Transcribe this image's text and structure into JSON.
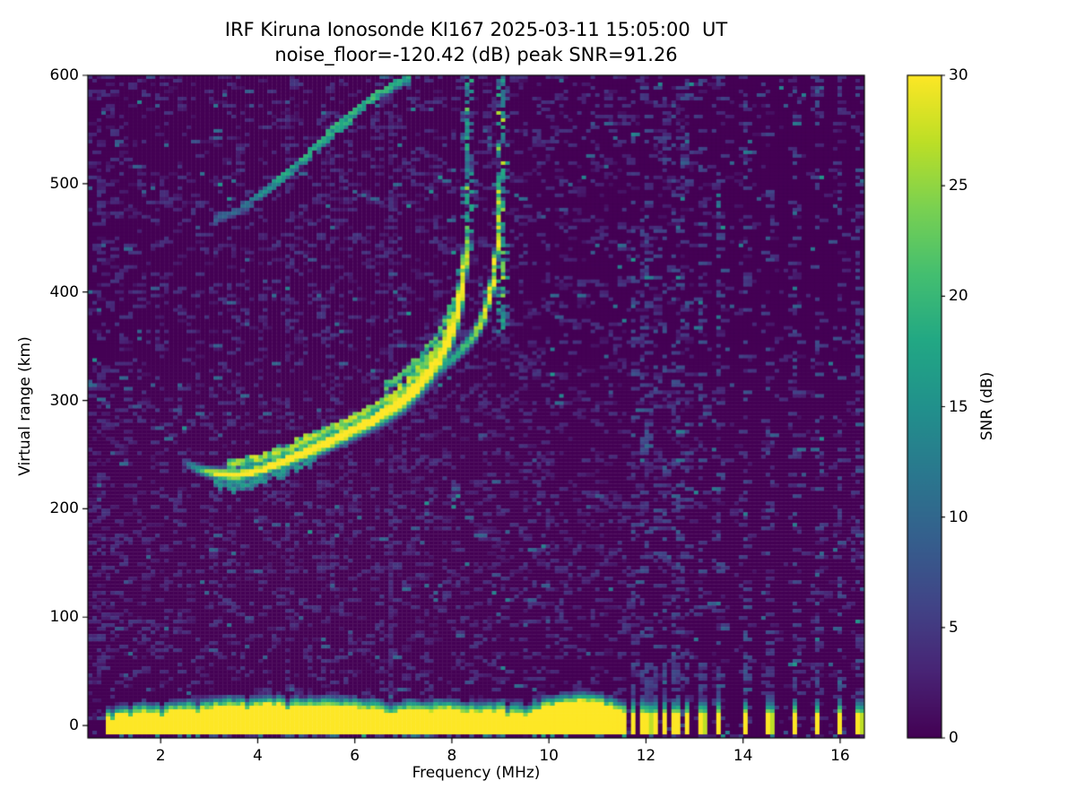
{
  "chart_data": {
    "type": "heatmap",
    "title": "IRF Kiruna Ionosonde KI167 2025-03-11 15:05:00  UT",
    "subtitle": "noise_floor=-120.42 (dB) peak SNR=91.26",
    "station": "IRF Kiruna Ionosonde KI167",
    "timestamp_ut": "2025-03-11 15:05:00",
    "noise_floor_db": -120.42,
    "peak_snr_db": 91.26,
    "xlabel": "Frequency (MHz)",
    "ylabel": "Virtual range (km)",
    "colorbar_label": "SNR (dB)",
    "xlim": [
      0.5,
      16.5
    ],
    "ylim": [
      -11.5,
      600
    ],
    "clim": [
      0,
      30
    ],
    "xticks": [
      2,
      4,
      6,
      8,
      10,
      12,
      14,
      16
    ],
    "yticks": [
      0,
      100,
      200,
      300,
      400,
      500,
      600
    ],
    "colorbar_ticks": [
      0,
      5,
      10,
      15,
      20,
      25,
      30
    ],
    "colormap": "viridis",
    "colormap_stops": [
      [
        0,
        "#440154"
      ],
      [
        0.1,
        "#482475"
      ],
      [
        0.2,
        "#414487"
      ],
      [
        0.3,
        "#355f8d"
      ],
      [
        0.4,
        "#2a788e"
      ],
      [
        0.5,
        "#21918c"
      ],
      [
        0.6,
        "#22a884"
      ],
      [
        0.7,
        "#44bf70"
      ],
      [
        0.8,
        "#7ad151"
      ],
      [
        0.9,
        "#bddf26"
      ],
      [
        1,
        "#fde725"
      ]
    ],
    "grid_cells": {
      "nx": 173,
      "ny": 185
    },
    "features": {
      "ground_band": {
        "f_start": 0.88,
        "f_end": 11.58,
        "bottom_km": -7,
        "top_profile": [
          [
            0.88,
            9
          ],
          [
            1.2,
            11
          ],
          [
            1.6,
            12
          ],
          [
            2.0,
            13
          ],
          [
            2.6,
            15
          ],
          [
            3.0,
            17
          ],
          [
            3.5,
            19
          ],
          [
            4.5,
            19
          ],
          [
            5.5,
            18
          ],
          [
            6.0,
            17
          ],
          [
            6.5,
            15
          ],
          [
            6.75,
            11
          ],
          [
            7.0,
            15
          ],
          [
            7.5,
            14
          ],
          [
            8.0,
            15
          ],
          [
            8.5,
            13
          ],
          [
            9.0,
            14
          ],
          [
            9.5,
            10
          ],
          [
            9.9,
            17
          ],
          [
            10.3,
            21
          ],
          [
            10.7,
            23
          ],
          [
            11.0,
            21
          ],
          [
            11.3,
            17
          ],
          [
            11.55,
            14
          ]
        ]
      },
      "discrete_tx_freqs": [
        11.75,
        11.9,
        12.05,
        12.2,
        12.4,
        12.55,
        12.7,
        12.85,
        13.15,
        13.5,
        14.05,
        14.5,
        15.05,
        15.5,
        16.0,
        16.35
      ],
      "discrete_dash": {
        "yellow_top_km": 11,
        "fringe_top_km": 26,
        "tail_top_km": 58
      },
      "o_trace": {
        "points": [
          [
            2.5,
            243
          ],
          [
            2.8,
            236
          ],
          [
            3.2,
            232
          ],
          [
            3.6,
            231
          ],
          [
            4.0,
            235
          ],
          [
            4.5,
            243
          ],
          [
            5.0,
            252
          ],
          [
            5.5,
            262
          ],
          [
            6.0,
            273
          ],
          [
            6.5,
            285
          ],
          [
            7.0,
            300
          ],
          [
            7.4,
            318
          ],
          [
            7.8,
            342
          ],
          [
            8.05,
            370
          ],
          [
            8.2,
            400
          ],
          [
            8.3,
            435
          ]
        ],
        "amp_profile": [
          [
            2.45,
            0
          ],
          [
            2.55,
            9
          ],
          [
            2.75,
            13
          ],
          [
            3.0,
            22
          ],
          [
            3.3,
            29
          ],
          [
            7.6,
            29
          ],
          [
            8.1,
            28
          ],
          [
            8.3,
            25
          ]
        ],
        "halfwidth_profile": [
          [
            2.5,
            3.5
          ],
          [
            3.5,
            5
          ],
          [
            6.0,
            7
          ],
          [
            7.5,
            10
          ],
          [
            8.3,
            13
          ]
        ],
        "p_draw": 1.0,
        "echoes": [
          {
            "dkm": 12,
            "f_range": [
              3.4,
              8.3
            ],
            "amp": 22,
            "p": 0.7
          },
          {
            "dkm": 24,
            "f_range": [
              6.6,
              8.3
            ],
            "amp": 18,
            "p": 0.55
          },
          {
            "dkm": -9,
            "f_range": [
              3.1,
              5.2
            ],
            "amp": 13,
            "p": 0.4
          }
        ],
        "asymptote": {
          "freq": 8.33,
          "bottom_km": 435,
          "top_km": 600,
          "critical_frequency_mhz": 8.33
        }
      },
      "x_trace": {
        "points": [
          [
            7.4,
            315
          ],
          [
            7.8,
            330
          ],
          [
            8.2,
            346
          ],
          [
            8.5,
            362
          ],
          [
            8.7,
            382
          ],
          [
            8.85,
            410
          ],
          [
            8.95,
            450
          ],
          [
            9.0,
            500
          ]
        ],
        "amp_profile": [
          [
            7.35,
            0
          ],
          [
            7.6,
            13
          ],
          [
            8.3,
            17
          ],
          [
            8.6,
            23
          ],
          [
            8.9,
            26
          ],
          [
            9.0,
            24
          ]
        ],
        "halfwidth_profile": [
          [
            7.4,
            4
          ],
          [
            8.6,
            6
          ],
          [
            9.0,
            8
          ]
        ],
        "p_draw": 0.8,
        "echoes": [],
        "asymptote": {
          "freq": 9.03,
          "bottom_km": 365,
          "top_km": 600,
          "critical_frequency_mhz": 9.03
        }
      },
      "second_hop_trace": {
        "points": [
          [
            3.15,
            468
          ],
          [
            3.6,
            476
          ],
          [
            4.0,
            488
          ],
          [
            4.4,
            502
          ],
          [
            4.8,
            518
          ],
          [
            5.2,
            534
          ],
          [
            5.6,
            551
          ],
          [
            6.0,
            567
          ],
          [
            6.4,
            580
          ],
          [
            6.8,
            591
          ],
          [
            7.15,
            599
          ]
        ],
        "amp_profile": [
          [
            3.15,
            7
          ],
          [
            3.8,
            9
          ],
          [
            4.3,
            14
          ],
          [
            5.6,
            15
          ],
          [
            6.4,
            16
          ],
          [
            7.15,
            14
          ]
        ],
        "p_draw": 0.8
      },
      "rfi_lines": [
        {
          "freq": 6.75,
          "strength": 0.55
        },
        {
          "freq": 4.63,
          "strength": 0.28
        }
      ],
      "noise": {
        "base_density": 0.15,
        "low_freq_boost_below_mhz": 1.15,
        "hf_region_start_mhz": 11.6
      }
    }
  }
}
